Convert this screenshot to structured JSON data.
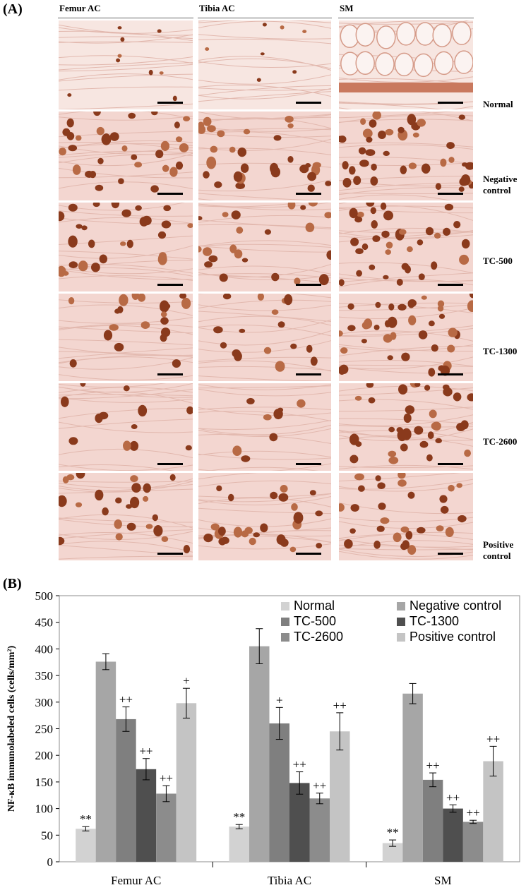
{
  "panels": {
    "a_label": "(A)",
    "b_label": "(B)"
  },
  "micrographs": {
    "columns": [
      "Femur AC",
      "Tibia AC",
      "SM"
    ],
    "rows": [
      {
        "label_line1": "Normal",
        "label_line2": ""
      },
      {
        "label_line1": "Negative",
        "label_line2": "control"
      },
      {
        "label_line1": "TC-500",
        "label_line2": ""
      },
      {
        "label_line1": "TC-1300",
        "label_line2": ""
      },
      {
        "label_line1": "TC-2600",
        "label_line2": ""
      },
      {
        "label_line1": "Positive",
        "label_line2": "control"
      }
    ],
    "colors": {
      "background_stain": "#f3d6d0",
      "nucleus_stain": "#8a3a1c",
      "nucleus_light": "#b86a45",
      "scale_bar": "#000000"
    }
  },
  "chart_data": {
    "type": "bar",
    "categories": [
      "Femur AC",
      "Tibia AC",
      "SM"
    ],
    "ylabel": "NF-κB immunolabeled cells (cells/mm²)",
    "ylim": [
      0,
      500
    ],
    "yticks": [
      0,
      50,
      100,
      150,
      200,
      250,
      300,
      350,
      400,
      450,
      500
    ],
    "legend_placement": "top-right",
    "grid": false,
    "series": [
      {
        "name": "Normal",
        "color": "#d2d2d2",
        "values": [
          62,
          66,
          35
        ],
        "errors": [
          4,
          4,
          6
        ],
        "marks": [
          "**",
          "**",
          "**"
        ]
      },
      {
        "name": "Negative control",
        "color": "#a6a6a6",
        "values": [
          376,
          405,
          316
        ],
        "errors": [
          15,
          33,
          19
        ],
        "marks": [
          "",
          "",
          ""
        ]
      },
      {
        "name": "TC-500",
        "color": "#7f7f7f",
        "values": [
          268,
          260,
          154
        ],
        "errors": [
          23,
          30,
          13
        ],
        "marks": [
          "++",
          "+",
          "++"
        ]
      },
      {
        "name": "TC-1300",
        "color": "#4f4f4f",
        "values": [
          174,
          148,
          100
        ],
        "errors": [
          20,
          21,
          7
        ],
        "marks": [
          "++",
          "++",
          "++"
        ]
      },
      {
        "name": "TC-2600",
        "color": "#8c8c8c",
        "values": [
          128,
          119,
          75
        ],
        "errors": [
          15,
          10,
          3
        ],
        "marks": [
          "++",
          "++",
          "++"
        ]
      },
      {
        "name": "Positive control",
        "color": "#c4c4c4",
        "values": [
          298,
          245,
          189
        ],
        "errors": [
          28,
          35,
          28
        ],
        "marks": [
          "+",
          "++",
          "++"
        ]
      }
    ]
  }
}
